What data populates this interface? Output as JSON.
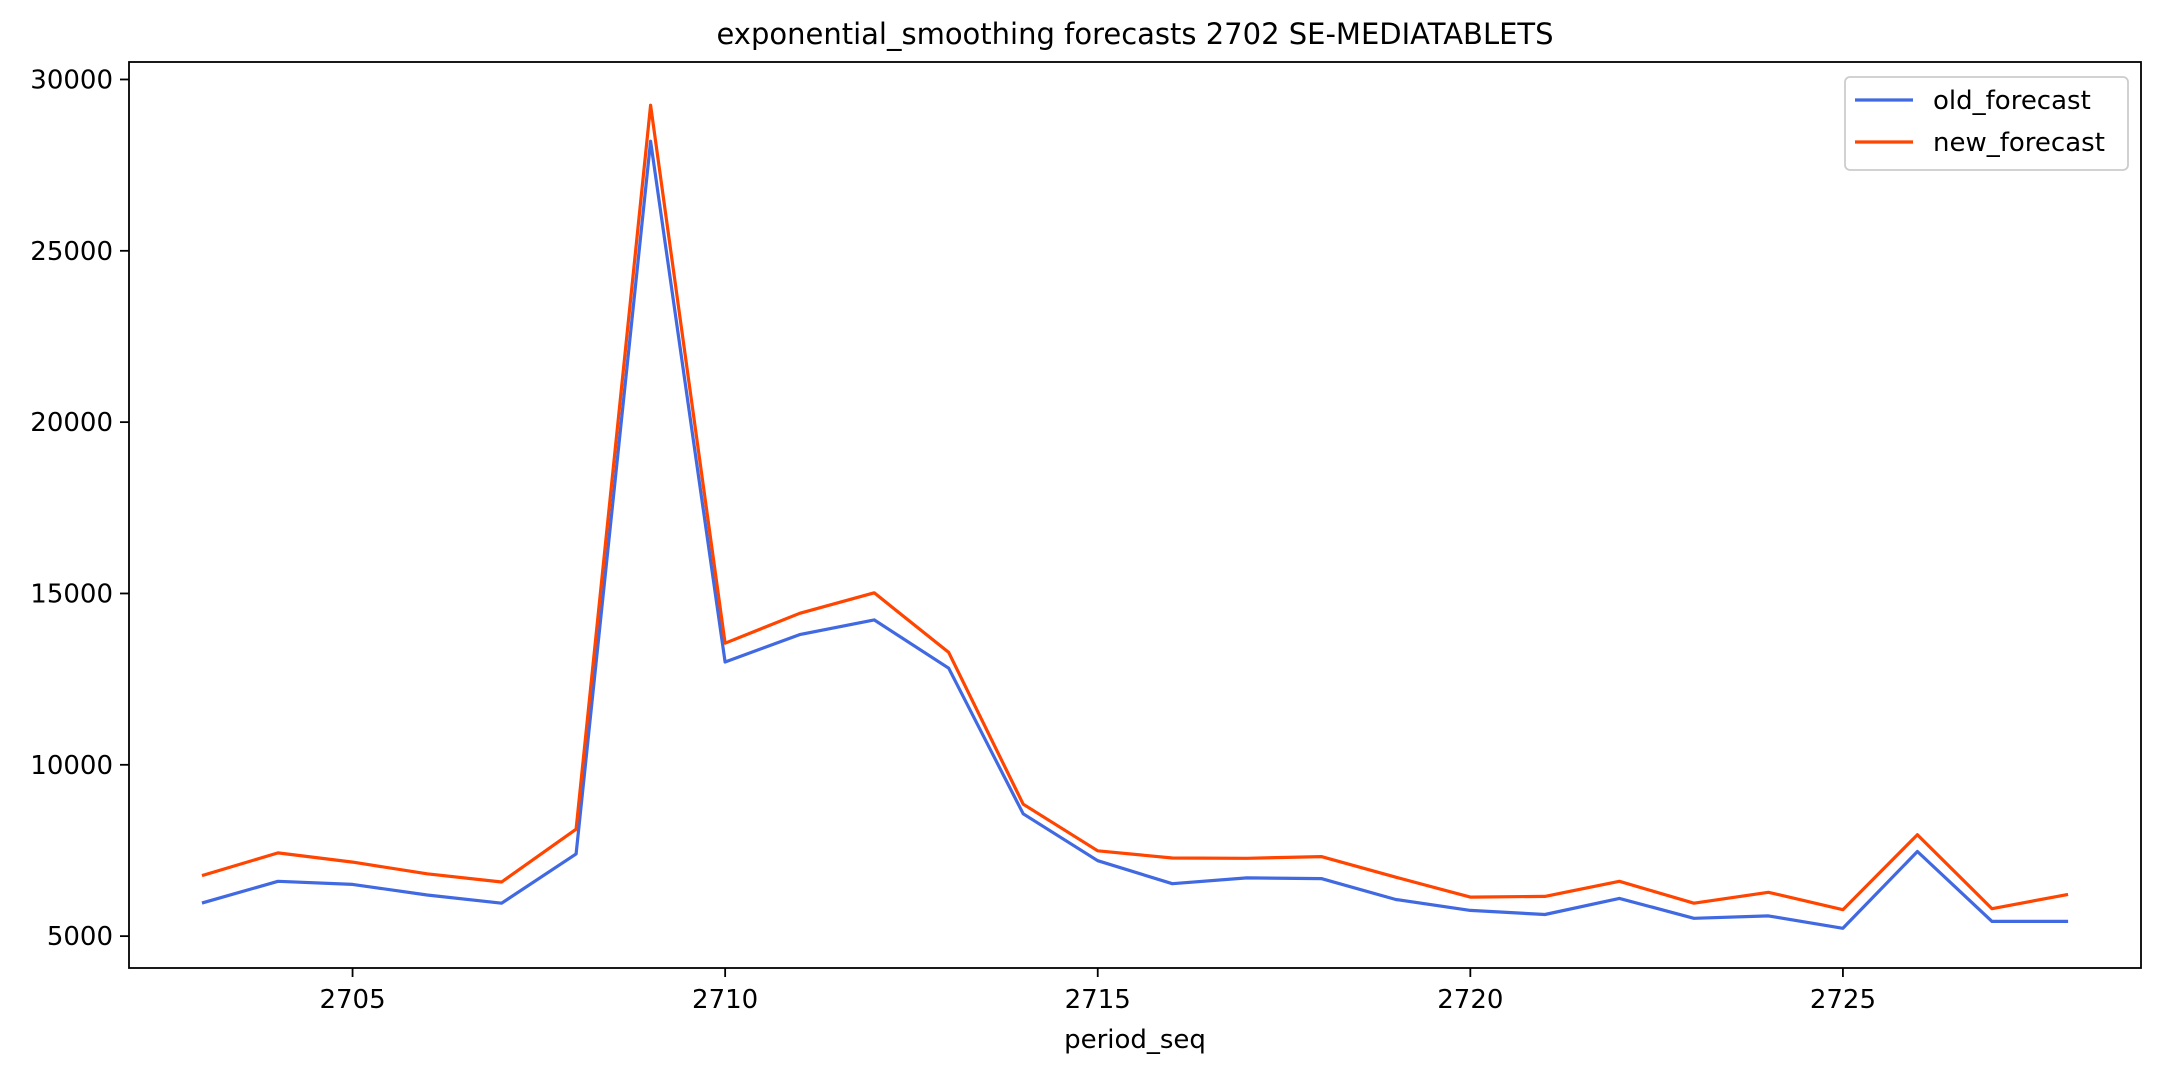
{
  "chart_data": {
    "type": "line",
    "title": "exponential_smoothing forecasts 2702 SE-MEDIATABLETS",
    "xlabel": "period_seq",
    "ylabel": "",
    "x": [
      2703,
      2704,
      2705,
      2706,
      2707,
      2708,
      2709,
      2710,
      2711,
      2712,
      2713,
      2714,
      2715,
      2716,
      2717,
      2718,
      2719,
      2720,
      2721,
      2722,
      2723,
      2724,
      2725,
      2726,
      2727,
      2728
    ],
    "series": [
      {
        "name": "old_forecast",
        "color": "#4169E1",
        "values": [
          5980,
          6600,
          6510,
          6200,
          5960,
          7400,
          28200,
          13000,
          13800,
          14230,
          12820,
          8570,
          7200,
          6530,
          6700,
          6680,
          6070,
          5750,
          5630,
          6100,
          5520,
          5590,
          5230,
          7470,
          5430,
          5430
        ]
      },
      {
        "name": "new_forecast",
        "color": "#FF4500",
        "values": [
          6780,
          7430,
          7160,
          6820,
          6580,
          8120,
          29250,
          13550,
          14420,
          15020,
          13280,
          8850,
          7490,
          7280,
          7270,
          7320,
          6720,
          6140,
          6160,
          6600,
          5960,
          6280,
          5770,
          7960,
          5800,
          6210
        ]
      }
    ],
    "xlim": [
      2702.0,
      2729.0
    ],
    "ylim": [
      4070,
      30510
    ],
    "xticks": [
      2705,
      2710,
      2715,
      2720,
      2725
    ],
    "yticks": [
      5000,
      10000,
      15000,
      20000,
      25000,
      30000
    ],
    "grid": false,
    "legend": "top-right"
  }
}
